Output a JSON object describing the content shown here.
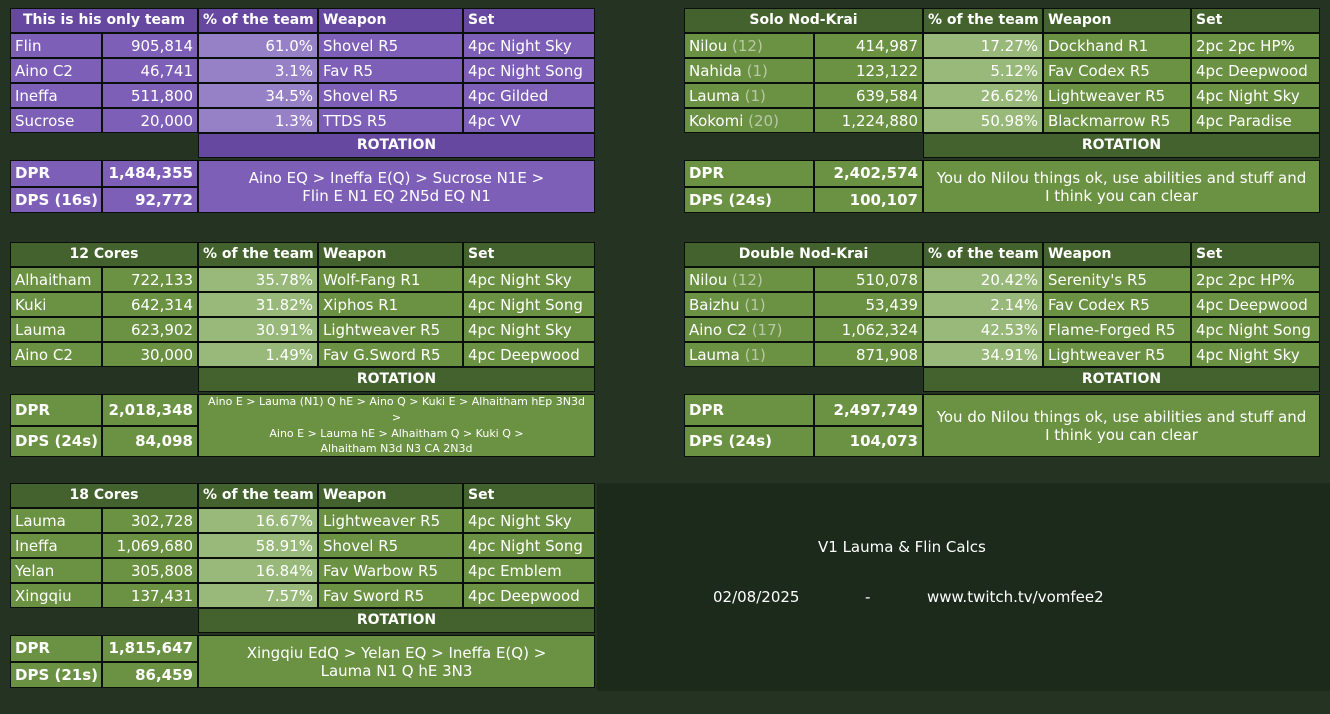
{
  "colors": {
    "purple_dark": "#6648a0",
    "purple_mid": "#7d5fb8",
    "purple_light": "#9781c6",
    "green_dark": "#44622d",
    "green_mid": "#6b9142",
    "green_light": "#98b97a",
    "page_bg": "#253322"
  },
  "headers": {
    "percent": "% of the team",
    "weapon": "Weapon",
    "set": "Set",
    "rotation": "ROTATION",
    "dpr": "DPR"
  },
  "teams": [
    {
      "title": "This is his only team",
      "theme": "purple",
      "rows": [
        {
          "name": "Flin",
          "cons": "",
          "damage": "905,814",
          "percent": "61.0%",
          "weapon": "Shovel R5",
          "set": "4pc Night Sky"
        },
        {
          "name": "Aino C2",
          "cons": "",
          "damage": "46,741",
          "percent": "3.1%",
          "weapon": "Fav R5",
          "set": "4pc Night Song"
        },
        {
          "name": "Ineffa",
          "cons": "",
          "damage": "511,800",
          "percent": "34.5%",
          "weapon": "Shovel R5",
          "set": "4pc Gilded"
        },
        {
          "name": "Sucrose",
          "cons": "",
          "damage": "20,000",
          "percent": "1.3%",
          "weapon": "TTDS R5",
          "set": "4pc VV"
        }
      ],
      "dpr": "1,484,355",
      "dps_label": "DPS (16s)",
      "dps": "92,772",
      "rotation": [
        "Aino EQ > Ineffa E(Q) > Sucrose N1E >",
        "Flin E N1 EQ 2N5d EQ N1"
      ]
    },
    {
      "title": "Solo Nod-Krai",
      "theme": "green",
      "rows": [
        {
          "name": "Nilou",
          "cons": "(12)",
          "damage": "414,987",
          "percent": "17.27%",
          "weapon": "Dockhand R1",
          "set": "2pc 2pc HP%"
        },
        {
          "name": "Nahida",
          "cons": "(1)",
          "damage": "123,122",
          "percent": "5.12%",
          "weapon": "Fav Codex R5",
          "set": "4pc Deepwood"
        },
        {
          "name": "Lauma",
          "cons": "(1)",
          "damage": "639,584",
          "percent": "26.62%",
          "weapon": "Lightweaver R5",
          "set": "4pc Night Sky"
        },
        {
          "name": "Kokomi",
          "cons": "(20)",
          "damage": "1,224,880",
          "percent": "50.98%",
          "weapon": "Blackmarrow R5",
          "set": "4pc Paradise"
        }
      ],
      "dpr": "2,402,574",
      "dps_label": "DPS (24s)",
      "dps": "100,107",
      "rotation": [
        "You do Nilou things ok, use abilities and stuff and",
        "I think you can clear"
      ]
    },
    {
      "title": "12 Cores",
      "theme": "green",
      "rows": [
        {
          "name": "Alhaitham",
          "cons": "",
          "damage": "722,133",
          "percent": "35.78%",
          "weapon": "Wolf-Fang R1",
          "set": "4pc Night Sky"
        },
        {
          "name": "Kuki",
          "cons": "",
          "damage": "642,314",
          "percent": "31.82%",
          "weapon": "Xiphos R1",
          "set": "4pc Night Song"
        },
        {
          "name": "Lauma",
          "cons": "",
          "damage": "623,902",
          "percent": "30.91%",
          "weapon": "Lightweaver R5",
          "set": "4pc Night Sky"
        },
        {
          "name": "Aino C2",
          "cons": "",
          "damage": "30,000",
          "percent": "1.49%",
          "weapon": "Fav G.Sword R5",
          "set": "4pc Deepwood"
        }
      ],
      "dpr": "2,018,348",
      "dps_label": "DPS (24s)",
      "dps": "84,098",
      "rotation": [
        "Aino E > Lauma (N1) Q hE > Aino Q > Kuki E > Alhaitham hEp 3N3d >",
        "Aino E > Lauma hE > Alhaitham Q > Kuki Q >",
        "Alhaitham N3d N3 CA 2N3d"
      ]
    },
    {
      "title": "Double Nod-Krai",
      "theme": "green",
      "rows": [
        {
          "name": "Nilou",
          "cons": "(12)",
          "damage": "510,078",
          "percent": "20.42%",
          "weapon": "Serenity's R5",
          "set": "2pc 2pc HP%"
        },
        {
          "name": "Baizhu",
          "cons": "(1)",
          "damage": "53,439",
          "percent": "2.14%",
          "weapon": "Fav Codex R5",
          "set": "4pc Deepwood"
        },
        {
          "name": "Aino C2",
          "cons": "(17)",
          "damage": "1,062,324",
          "percent": "42.53%",
          "weapon": "Flame-Forged R5",
          "set": "4pc Night Song"
        },
        {
          "name": "Lauma",
          "cons": "(1)",
          "damage": "871,908",
          "percent": "34.91%",
          "weapon": "Lightweaver R5",
          "set": "4pc Night Sky"
        }
      ],
      "dpr": "2,497,749",
      "dps_label": "DPS (24s)",
      "dps": "104,073",
      "rotation": [
        "You do Nilou things ok, use abilities and stuff and",
        "I think you can clear"
      ]
    },
    {
      "title": "18 Cores",
      "theme": "green",
      "rows": [
        {
          "name": "Lauma",
          "cons": "",
          "damage": "302,728",
          "percent": "16.67%",
          "weapon": "Lightweaver R5",
          "set": "4pc Night Sky"
        },
        {
          "name": "Ineffa",
          "cons": "",
          "damage": "1,069,680",
          "percent": "58.91%",
          "weapon": "Shovel R5",
          "set": "4pc Night Song"
        },
        {
          "name": "Yelan",
          "cons": "",
          "damage": "305,808",
          "percent": "16.84%",
          "weapon": "Fav Warbow R5",
          "set": "4pc Emblem"
        },
        {
          "name": "Xingqiu",
          "cons": "",
          "damage": "137,431",
          "percent": "7.57%",
          "weapon": "Fav Sword R5",
          "set": "4pc Deepwood"
        }
      ],
      "dpr": "1,815,647",
      "dps_label": "DPS (21s)",
      "dps": "86,459",
      "rotation": [
        "Xingqiu EdQ > Yelan EQ > Ineffa E(Q) >",
        "Lauma N1 Q hE  3N3"
      ]
    }
  ],
  "footer": {
    "title": "V1 Lauma & Flin Calcs",
    "date": "02/08/2025",
    "separator": "-",
    "url": "www.twitch.tv/vomfee2"
  }
}
